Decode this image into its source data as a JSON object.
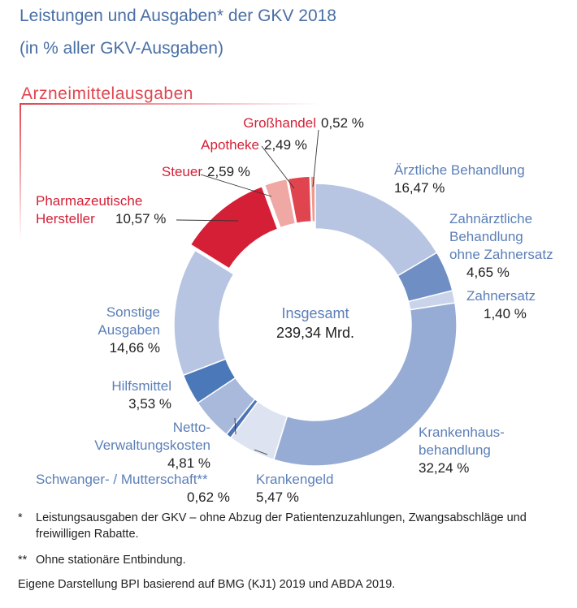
{
  "title": "Leistungen und Ausgaben* der GKV 2018",
  "subtitle": "(in % aller GKV-Ausgaben)",
  "group_label": "Arzneimittelausgaben",
  "footnotes": [
    {
      "mark": "*",
      "text": "Leistungsausgaben der GKV – ohne Abzug der Patientenzuzahlungen, Zwangsabschläge und freiwilligen Rabatte."
    },
    {
      "mark": "**",
      "text": "Ohne stationäre Entbindung."
    }
  ],
  "source": "Eigene Darstellung BPI basierend auf BMG (KJ1) 2019 und ABDA 2019.",
  "chart_data": {
    "type": "pie",
    "donut": true,
    "center_label": "Insgesamt",
    "center_value": "239,34 Mrd.",
    "unit": "%",
    "slices": [
      {
        "name": "Ärztliche Behandlung",
        "value": 16.47,
        "label": "16,47 %",
        "color": "#b7c5e2",
        "group": ""
      },
      {
        "name": "Zahnärztliche Behandlung ohne Zahnersatz",
        "value": 4.65,
        "label": "4,65 %",
        "color": "#6f8fc4",
        "group": ""
      },
      {
        "name": "Zahnersatz",
        "value": 1.4,
        "label": "1,40 %",
        "color": "#c9d4ea",
        "group": ""
      },
      {
        "name": "Krankenhausbehandlung",
        "value": 32.24,
        "label": "32,24 %",
        "color": "#97acd4",
        "group": ""
      },
      {
        "name": "Krankengeld",
        "value": 5.47,
        "label": "5,47 %",
        "color": "#dde3f1",
        "group": ""
      },
      {
        "name": "Schwanger- / Mutterschaft**",
        "value": 0.62,
        "label": "0,62 %",
        "color": "#4c74b4",
        "group": ""
      },
      {
        "name": "Netto-Verwaltungskosten",
        "value": 4.81,
        "label": "4,81 %",
        "color": "#a8b9dc",
        "group": ""
      },
      {
        "name": "Hilfsmittel",
        "value": 3.53,
        "label": "3,53 %",
        "color": "#4a78b8",
        "group": ""
      },
      {
        "name": "Sonstige Ausgaben",
        "value": 14.66,
        "label": "14,66 %",
        "color": "#b7c5e2",
        "group": ""
      },
      {
        "name": "Pharmazeutische Hersteller",
        "value": 10.57,
        "label": "10,57 %",
        "color": "#d51f36",
        "group": "Arzneimittelausgaben"
      },
      {
        "name": "Steuer",
        "value": 2.59,
        "label": "2,59 %",
        "color": "#f0a8a4",
        "group": "Arzneimittelausgaben"
      },
      {
        "name": "Apotheke",
        "value": 2.49,
        "label": "2,49 %",
        "color": "#e0454f",
        "group": "Arzneimittelausgaben"
      },
      {
        "name": "Großhandel",
        "value": 0.52,
        "label": "0,52 %",
        "color": "#ee9a8f",
        "group": "Arzneimittelausgaben"
      }
    ],
    "callouts": [
      {
        "lines": [
          "Ärztliche Behandlung"
        ],
        "value": "16,47 %"
      },
      {
        "lines": [
          "Zahnärztliche",
          "Behandlung",
          "ohne Zahnersatz"
        ],
        "value": "4,65 %"
      },
      {
        "lines": [
          "Zahnersatz"
        ],
        "value": "1,40 %"
      },
      {
        "lines": [
          "Krankenhaus-",
          "behandlung"
        ],
        "value": "32,24 %"
      },
      {
        "lines": [
          "Krankengeld"
        ],
        "value": "5,47 %"
      },
      {
        "lines": [
          "Schwanger- / Mutterschaft**"
        ],
        "value": "0,62 %"
      },
      {
        "lines": [
          "Netto-",
          "Verwaltungskosten"
        ],
        "value": "4,81 %"
      },
      {
        "lines": [
          "Hilfsmittel"
        ],
        "value": "3,53 %"
      },
      {
        "lines": [
          "Sonstige",
          "Ausgaben"
        ],
        "value": "14,66 %"
      },
      {
        "lines": [
          "Pharmazeutische",
          "Hersteller"
        ],
        "value": "10,57 %"
      },
      {
        "lines": [
          "Steuer"
        ],
        "value": "2,59 %"
      },
      {
        "lines": [
          "Apotheke"
        ],
        "value": "2,49 %"
      },
      {
        "lines": [
          "Großhandel"
        ],
        "value": "0,52 %"
      }
    ]
  }
}
